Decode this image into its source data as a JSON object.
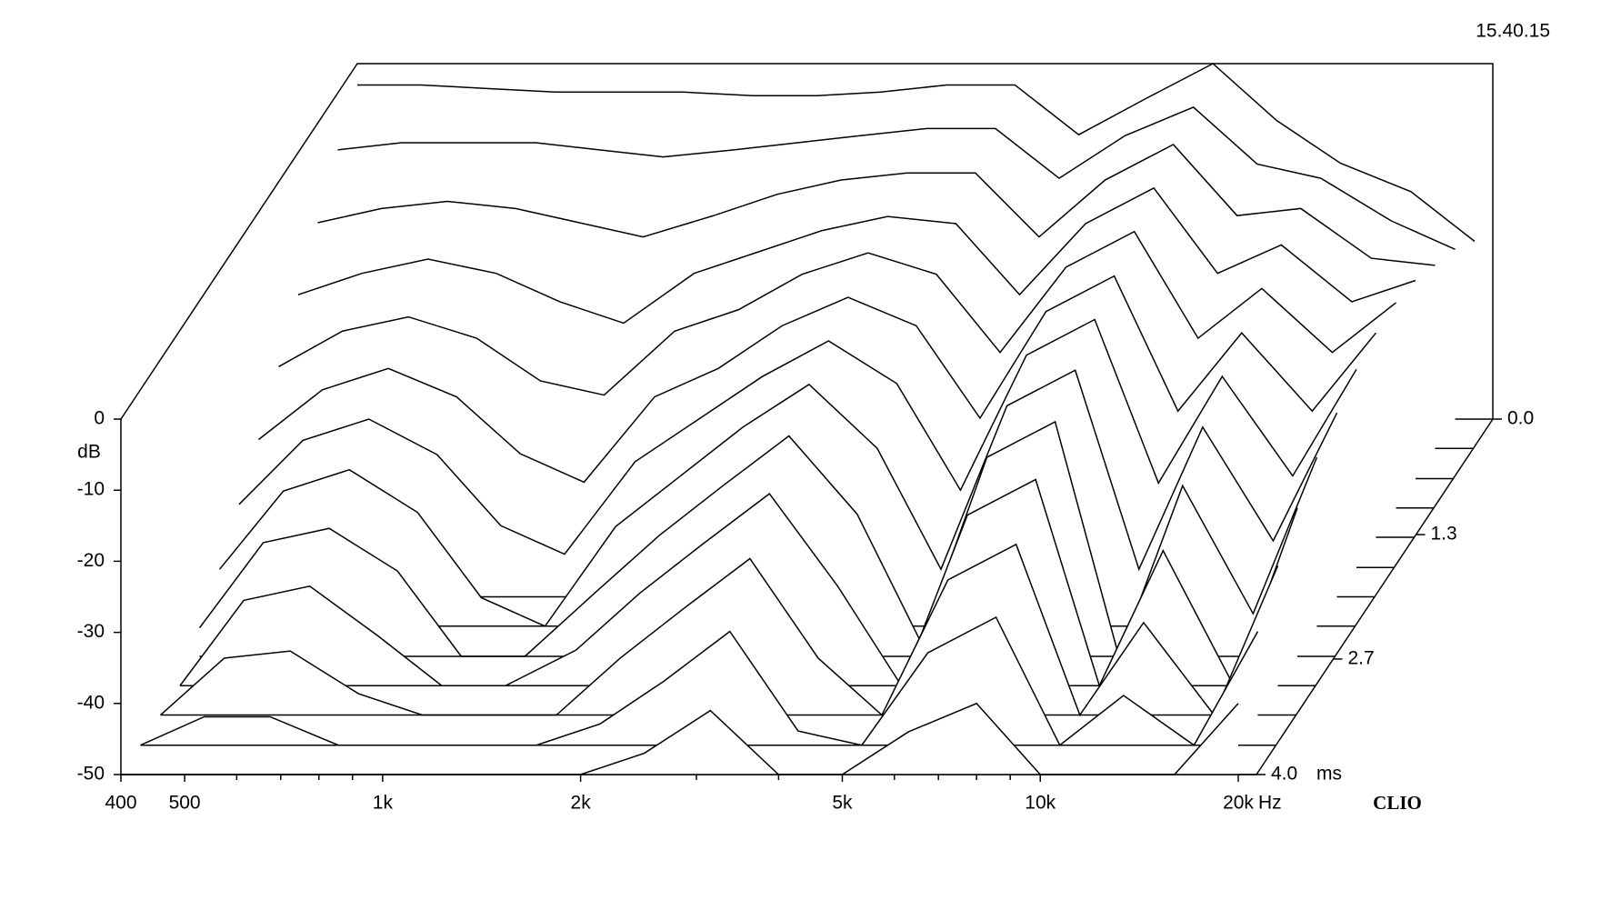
{
  "chart_data": {
    "type": "waterfall",
    "timestamp": "15.40.15",
    "brand": "CLIO",
    "log_x": true,
    "xlim": [
      400,
      20000
    ],
    "xticks": [
      {
        "value": 400,
        "label": "400"
      },
      {
        "value": 500,
        "label": "500"
      },
      {
        "value": 1000,
        "label": "1k"
      },
      {
        "value": 2000,
        "label": "2k"
      },
      {
        "value": 5000,
        "label": "5k"
      },
      {
        "value": 10000,
        "label": "10k"
      },
      {
        "value": 20000,
        "label": "20k"
      }
    ],
    "xminor": [
      600,
      700,
      800,
      900,
      3000,
      4000,
      6000,
      7000,
      8000,
      9000
    ],
    "x_unit": "Hz",
    "ylim": [
      -50,
      0
    ],
    "yticks": [
      0,
      -10,
      -20,
      -30,
      -40,
      -50
    ],
    "y_unit": "dB",
    "zlim": [
      0,
      4
    ],
    "zticks": [
      {
        "value": 0,
        "label": "0.0"
      },
      1.3,
      2.7,
      {
        "value": 4,
        "label": "4.0"
      }
    ],
    "z_unit": "ms",
    "x": [
      400,
      500,
      630,
      800,
      1000,
      1250,
      1600,
      2000,
      2500,
      3150,
      4000,
      5000,
      6300,
      8000,
      10000,
      12500,
      16000,
      20000
    ],
    "slices": [
      {
        "time": 0,
        "values": [
          -3,
          -3,
          -3.5,
          -4,
          -4,
          -4,
          -4.5,
          -4.5,
          -4,
          -3,
          -3,
          -10,
          -5,
          0,
          -8,
          -14,
          -18,
          -25
        ]
      },
      {
        "time": 0.33,
        "values": [
          -8,
          -7,
          -7,
          -7,
          -8,
          -9,
          -8,
          -7,
          -6,
          -5,
          -5,
          -12,
          -6,
          -2,
          -10,
          -12,
          -18,
          -22
        ]
      },
      {
        "time": 0.67,
        "values": [
          -14,
          -12,
          -11,
          -12,
          -14,
          -16,
          -13,
          -10,
          -8,
          -7,
          -7,
          -16,
          -8,
          -3,
          -13,
          -12,
          -19,
          -20
        ]
      },
      {
        "time": 1.0,
        "values": [
          -20,
          -17,
          -15,
          -17,
          -21,
          -24,
          -17,
          -14,
          -11,
          -9,
          -10,
          -20,
          -10,
          -5,
          -17,
          -13,
          -21,
          -18
        ]
      },
      {
        "time": 1.33,
        "values": [
          -26,
          -21,
          -19,
          -22,
          -28,
          -30,
          -21,
          -18,
          -13,
          -10,
          -13,
          -24,
          -12,
          -7,
          -22,
          -15,
          -24,
          -17
        ]
      },
      {
        "time": 1.67,
        "values": [
          -32,
          -25,
          -22,
          -26,
          -34,
          -38,
          -26,
          -22,
          -16,
          -12,
          -16,
          -29,
          -14,
          -9,
          -28,
          -17,
          -28,
          -17
        ]
      },
      {
        "time": 2.0,
        "values": [
          -37,
          -28,
          -25,
          -30,
          -40,
          -44,
          -31,
          -25,
          -19,
          -14,
          -20,
          -35,
          -16,
          -11,
          -34,
          -19,
          -33,
          -18
        ]
      },
      {
        "time": 2.33,
        "values": [
          -42,
          -31,
          -28,
          -34,
          -46,
          -50,
          -36,
          -29,
          -22,
          -16,
          -25,
          -42,
          -19,
          -14,
          -42,
          -22,
          -38,
          -20
        ]
      },
      {
        "time": 2.67,
        "values": [
          -46,
          -34,
          -32,
          -38,
          -50,
          -50,
          -41,
          -33,
          -26,
          -19,
          -30,
          -48,
          -22,
          -17,
          -50,
          -26,
          -44,
          -22
        ]
      },
      {
        "time": 3.0,
        "values": [
          -50,
          -38,
          -36,
          -43,
          -50,
          -50,
          -45,
          -37,
          -30,
          -23,
          -36,
          -50,
          -26,
          -21,
          -50,
          -31,
          -50,
          -25
        ]
      },
      {
        "time": 3.33,
        "values": [
          -50,
          -42,
          -41,
          -47,
          -50,
          -50,
          -50,
          -42,
          -35,
          -28,
          -42,
          -50,
          -31,
          -26,
          -50,
          -37,
          -50,
          -29
        ]
      },
      {
        "time": 3.67,
        "values": [
          -50,
          -46,
          -46,
          -50,
          -50,
          -50,
          -50,
          -47,
          -41,
          -34,
          -48,
          -50,
          -37,
          -32,
          -50,
          -43,
          -50,
          -34
        ]
      },
      {
        "time": 4.0,
        "values": [
          -50,
          -50,
          -50,
          -50,
          -50,
          -50,
          -50,
          -50,
          -47,
          -41,
          -50,
          -50,
          -44,
          -40,
          -50,
          -50,
          -50,
          -40
        ]
      }
    ]
  }
}
